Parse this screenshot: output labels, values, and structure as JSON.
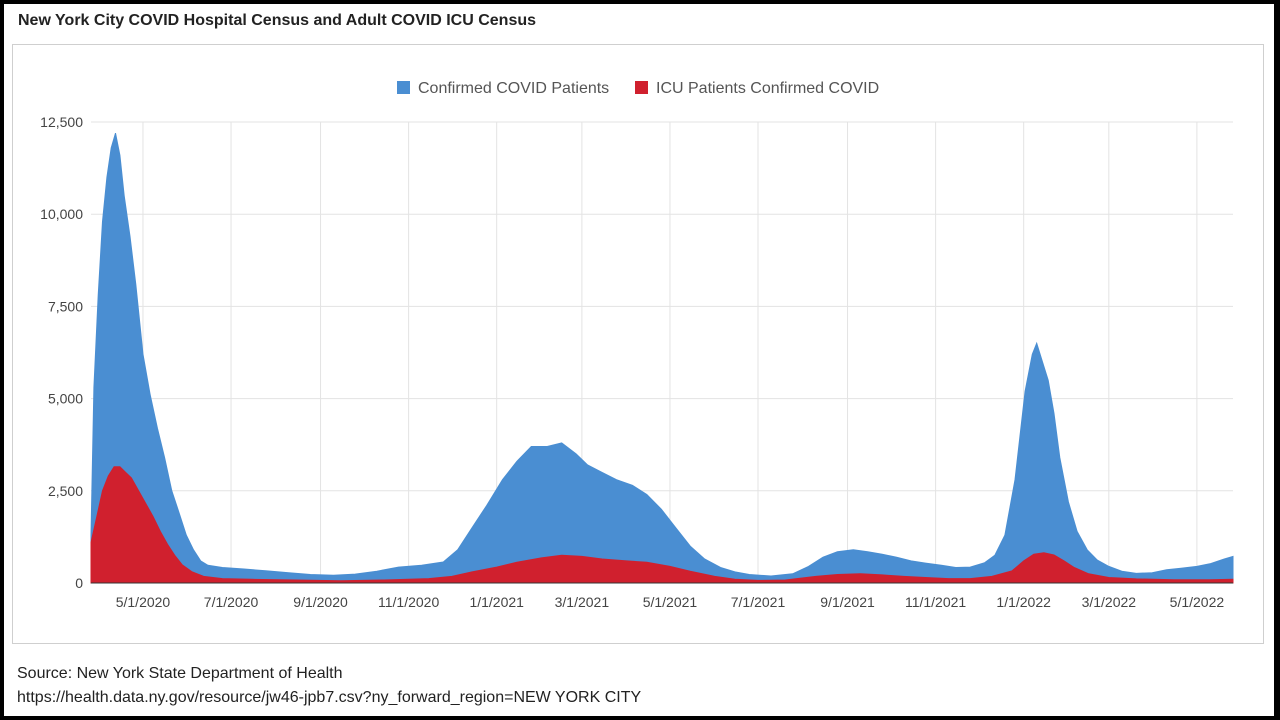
{
  "title": "New York City COVID Hospital Census and Adult COVID ICU Census",
  "footer": {
    "source": "Source: New York State Department of Health",
    "url": "https://health.data.ny.gov/resource/jw46-jpb7.csv?ny_forward_region=NEW YORK CITY"
  },
  "chart_data": {
    "type": "area",
    "stacked": false,
    "x_axis_type": "date",
    "xlim": [
      "2020-03-26",
      "2022-05-26"
    ],
    "ylim": [
      0,
      12500
    ],
    "y_ticks": [
      0,
      2500,
      5000,
      7500,
      10000,
      12500
    ],
    "y_tick_labels": [
      "0",
      "2,500",
      "5,000",
      "7,500",
      "10,000",
      "12,500"
    ],
    "x_ticks": [
      "2020-05-01",
      "2020-07-01",
      "2020-09-01",
      "2020-11-01",
      "2021-01-01",
      "2021-03-01",
      "2021-05-01",
      "2021-07-01",
      "2021-09-01",
      "2021-11-01",
      "2022-01-01",
      "2022-03-01",
      "2022-05-01"
    ],
    "x_tick_labels": [
      "5/1/2020",
      "7/1/2020",
      "9/1/2020",
      "11/1/2020",
      "1/1/2021",
      "3/1/2021",
      "5/1/2021",
      "7/1/2021",
      "9/1/2021",
      "11/1/2021",
      "1/1/2022",
      "3/1/2022",
      "5/1/2022"
    ],
    "grid": true,
    "legend_position": "top-center",
    "series": [
      {
        "name": "Confirmed COVID Patients",
        "color": "#4a8ed2",
        "points": [
          [
            "2020-03-26",
            1300
          ],
          [
            "2020-03-28",
            5300
          ],
          [
            "2020-03-31",
            7800
          ],
          [
            "2020-04-03",
            9800
          ],
          [
            "2020-04-06",
            11000
          ],
          [
            "2020-04-09",
            11800
          ],
          [
            "2020-04-12",
            12200
          ],
          [
            "2020-04-15",
            11600
          ],
          [
            "2020-04-18",
            10500
          ],
          [
            "2020-04-22",
            9400
          ],
          [
            "2020-04-26",
            8100
          ],
          [
            "2020-05-01",
            6200
          ],
          [
            "2020-05-06",
            5100
          ],
          [
            "2020-05-11",
            4200
          ],
          [
            "2020-05-16",
            3400
          ],
          [
            "2020-05-21",
            2500
          ],
          [
            "2020-05-26",
            1900
          ],
          [
            "2020-05-31",
            1300
          ],
          [
            "2020-06-05",
            900
          ],
          [
            "2020-06-10",
            600
          ],
          [
            "2020-06-15",
            480
          ],
          [
            "2020-06-25",
            420
          ],
          [
            "2020-07-10",
            380
          ],
          [
            "2020-07-25",
            330
          ],
          [
            "2020-08-10",
            280
          ],
          [
            "2020-08-25",
            230
          ],
          [
            "2020-09-10",
            210
          ],
          [
            "2020-09-25",
            240
          ],
          [
            "2020-10-10",
            320
          ],
          [
            "2020-10-25",
            430
          ],
          [
            "2020-11-10",
            480
          ],
          [
            "2020-11-25",
            570
          ],
          [
            "2020-12-05",
            900
          ],
          [
            "2020-12-15",
            1500
          ],
          [
            "2020-12-25",
            2100
          ],
          [
            "2021-01-05",
            2800
          ],
          [
            "2021-01-15",
            3300
          ],
          [
            "2021-01-25",
            3700
          ],
          [
            "2021-02-05",
            3700
          ],
          [
            "2021-02-15",
            3800
          ],
          [
            "2021-02-25",
            3500
          ],
          [
            "2021-03-05",
            3200
          ],
          [
            "2021-03-15",
            3000
          ],
          [
            "2021-03-25",
            2800
          ],
          [
            "2021-04-05",
            2650
          ],
          [
            "2021-04-15",
            2400
          ],
          [
            "2021-04-25",
            2000
          ],
          [
            "2021-05-05",
            1500
          ],
          [
            "2021-05-15",
            1000
          ],
          [
            "2021-05-25",
            650
          ],
          [
            "2021-06-05",
            420
          ],
          [
            "2021-06-15",
            300
          ],
          [
            "2021-06-25",
            230
          ],
          [
            "2021-07-10",
            190
          ],
          [
            "2021-07-25",
            250
          ],
          [
            "2021-08-05",
            450
          ],
          [
            "2021-08-15",
            700
          ],
          [
            "2021-08-25",
            850
          ],
          [
            "2021-09-05",
            900
          ],
          [
            "2021-09-15",
            850
          ],
          [
            "2021-09-25",
            780
          ],
          [
            "2021-10-05",
            700
          ],
          [
            "2021-10-15",
            600
          ],
          [
            "2021-10-25",
            540
          ],
          [
            "2021-11-05",
            480
          ],
          [
            "2021-11-15",
            420
          ],
          [
            "2021-11-25",
            430
          ],
          [
            "2021-12-05",
            550
          ],
          [
            "2021-12-12",
            750
          ],
          [
            "2021-12-19",
            1300
          ],
          [
            "2021-12-26",
            2800
          ],
          [
            "2022-01-02",
            5200
          ],
          [
            "2022-01-07",
            6200
          ],
          [
            "2022-01-10",
            6500
          ],
          [
            "2022-01-14",
            6000
          ],
          [
            "2022-01-18",
            5500
          ],
          [
            "2022-01-22",
            4600
          ],
          [
            "2022-01-26",
            3400
          ],
          [
            "2022-02-01",
            2200
          ],
          [
            "2022-02-07",
            1400
          ],
          [
            "2022-02-14",
            900
          ],
          [
            "2022-02-21",
            620
          ],
          [
            "2022-03-01",
            450
          ],
          [
            "2022-03-10",
            320
          ],
          [
            "2022-03-20",
            260
          ],
          [
            "2022-03-31",
            280
          ],
          [
            "2022-04-10",
            360
          ],
          [
            "2022-04-20",
            400
          ],
          [
            "2022-05-01",
            450
          ],
          [
            "2022-05-10",
            520
          ],
          [
            "2022-05-20",
            650
          ],
          [
            "2022-05-26",
            720
          ]
        ]
      },
      {
        "name": "ICU Patients Confirmed COVID",
        "color": "#d0202e",
        "points": [
          [
            "2020-03-26",
            1100
          ],
          [
            "2020-03-30",
            1800
          ],
          [
            "2020-04-03",
            2500
          ],
          [
            "2020-04-07",
            2900
          ],
          [
            "2020-04-11",
            3150
          ],
          [
            "2020-04-15",
            3150
          ],
          [
            "2020-04-19",
            3000
          ],
          [
            "2020-04-23",
            2850
          ],
          [
            "2020-04-28",
            2500
          ],
          [
            "2020-05-03",
            2150
          ],
          [
            "2020-05-08",
            1800
          ],
          [
            "2020-05-13",
            1400
          ],
          [
            "2020-05-18",
            1050
          ],
          [
            "2020-05-23",
            750
          ],
          [
            "2020-05-28",
            500
          ],
          [
            "2020-06-04",
            300
          ],
          [
            "2020-06-12",
            180
          ],
          [
            "2020-06-25",
            120
          ],
          [
            "2020-07-15",
            100
          ],
          [
            "2020-08-15",
            80
          ],
          [
            "2020-09-15",
            60
          ],
          [
            "2020-10-15",
            80
          ],
          [
            "2020-11-15",
            120
          ],
          [
            "2020-12-01",
            180
          ],
          [
            "2020-12-15",
            300
          ],
          [
            "2021-01-01",
            430
          ],
          [
            "2021-01-15",
            560
          ],
          [
            "2021-02-01",
            680
          ],
          [
            "2021-02-15",
            750
          ],
          [
            "2021-03-01",
            720
          ],
          [
            "2021-03-15",
            650
          ],
          [
            "2021-04-01",
            600
          ],
          [
            "2021-04-15",
            560
          ],
          [
            "2021-05-01",
            450
          ],
          [
            "2021-05-15",
            320
          ],
          [
            "2021-06-01",
            180
          ],
          [
            "2021-06-15",
            100
          ],
          [
            "2021-07-01",
            70
          ],
          [
            "2021-07-20",
            80
          ],
          [
            "2021-08-10",
            180
          ],
          [
            "2021-08-25",
            230
          ],
          [
            "2021-09-10",
            250
          ],
          [
            "2021-09-25",
            220
          ],
          [
            "2021-10-10",
            180
          ],
          [
            "2021-10-25",
            150
          ],
          [
            "2021-11-10",
            120
          ],
          [
            "2021-11-25",
            120
          ],
          [
            "2021-12-10",
            180
          ],
          [
            "2021-12-24",
            330
          ],
          [
            "2022-01-01",
            600
          ],
          [
            "2022-01-08",
            780
          ],
          [
            "2022-01-15",
            820
          ],
          [
            "2022-01-22",
            760
          ],
          [
            "2022-01-29",
            600
          ],
          [
            "2022-02-05",
            420
          ],
          [
            "2022-02-15",
            250
          ],
          [
            "2022-03-01",
            150
          ],
          [
            "2022-03-20",
            110
          ],
          [
            "2022-04-15",
            90
          ],
          [
            "2022-05-10",
            90
          ],
          [
            "2022-05-26",
            100
          ]
        ]
      }
    ]
  }
}
